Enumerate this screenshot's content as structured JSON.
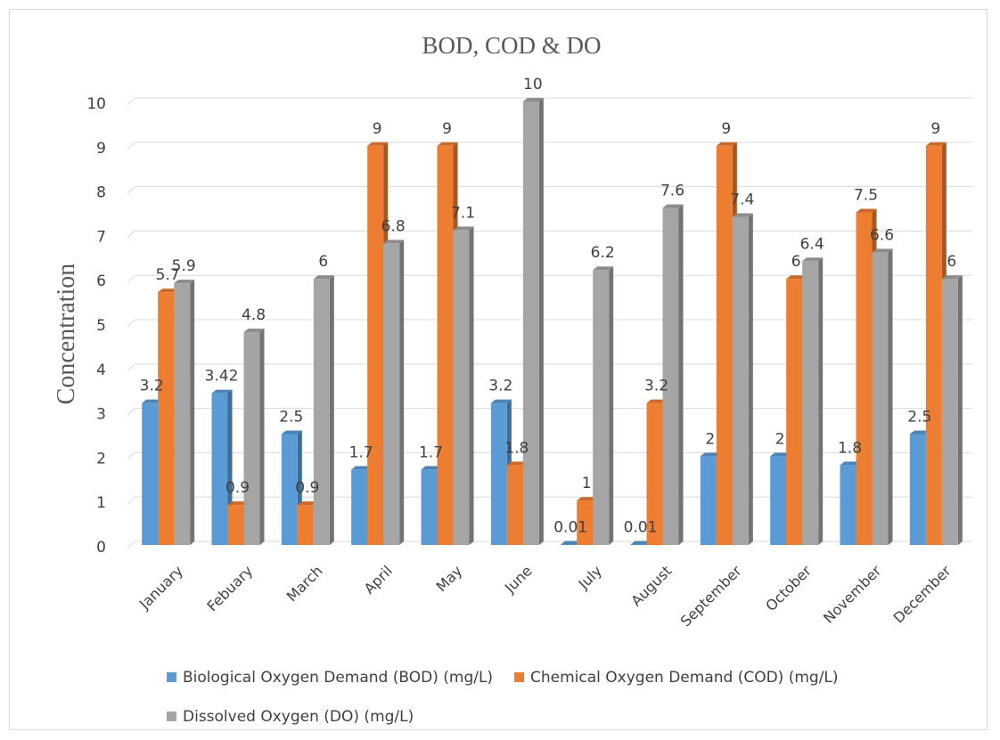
{
  "chart_data": {
    "type": "bar",
    "title": "BOD, COD & DO",
    "xlabel": "",
    "ylabel": "Concentration",
    "ylim": [
      0,
      10
    ],
    "yticks": [
      "0",
      "1",
      "2",
      "3",
      "4",
      "5",
      "6",
      "7",
      "8",
      "9",
      "10"
    ],
    "grid": true,
    "legend_position": "bottom",
    "categories": [
      "January",
      "Febuary",
      "March",
      "April",
      "May",
      "June",
      "July",
      "August",
      "September",
      "October",
      "November",
      "December"
    ],
    "series": [
      {
        "name": "Biological Oxygen Demand (BOD) (mg/L)",
        "color": "#5b9bd5",
        "values": [
          3.2,
          3.42,
          2.5,
          1.7,
          1.7,
          3.2,
          0.01,
          0.01,
          2,
          2,
          1.8,
          2.5
        ]
      },
      {
        "name": "Chemical Oxygen Demand (COD) (mg/L)",
        "color": "#ed7d31",
        "values": [
          5.7,
          0.9,
          0.9,
          9,
          9,
          1.8,
          1,
          3.2,
          9,
          6,
          7.5,
          9
        ]
      },
      {
        "name": "Dissolved Oxygen (DO) (mg/L)",
        "color": "#a5a5a5",
        "values": [
          5.9,
          4.8,
          6,
          6.8,
          7.1,
          10,
          6.2,
          7.6,
          7.4,
          6.4,
          6.6,
          6
        ]
      }
    ]
  }
}
